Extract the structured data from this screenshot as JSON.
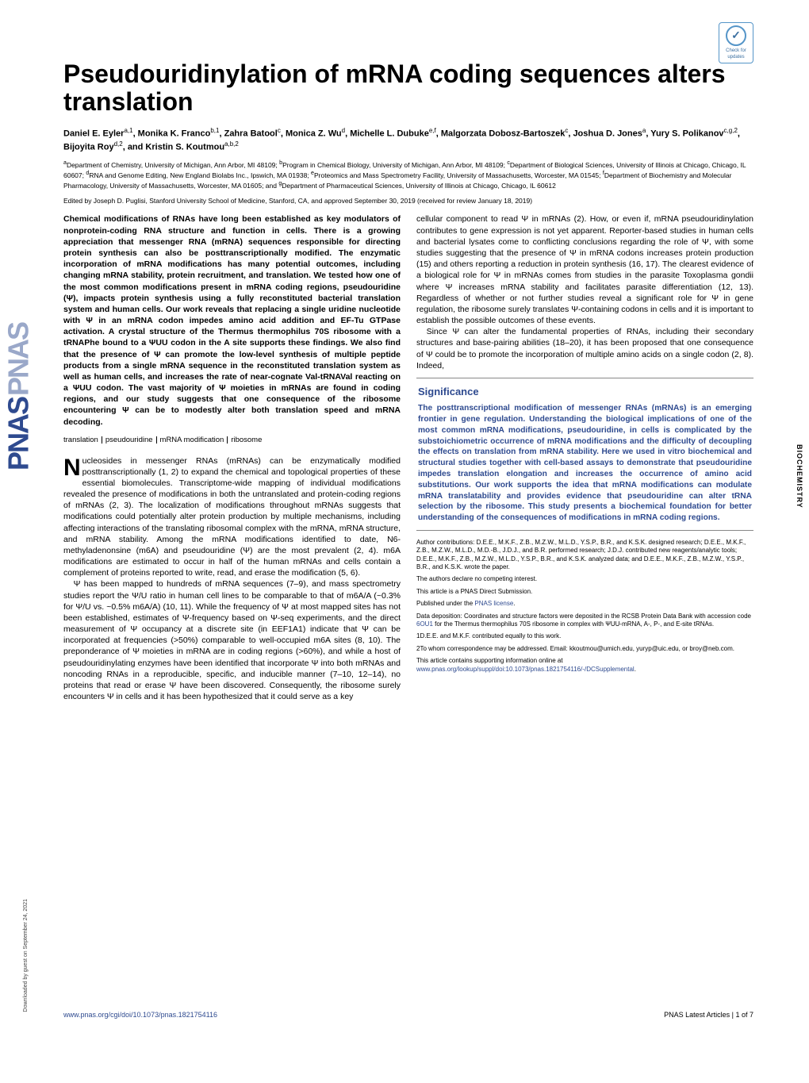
{
  "badge": {
    "check": "✓",
    "label": "Check for updates"
  },
  "vertical_category": "BIOCHEMISTRY",
  "download_note": "Downloaded by guest on September 24, 2021",
  "title": "Pseudouridinylation of mRNA coding sequences alters translation",
  "authors_html": "Daniel E. Eyler<sup>a,1</sup>, Monika K. Franco<sup>b,1</sup>, Zahra Batool<sup>c</sup>, Monica Z. Wu<sup>d</sup>, Michelle L. Dubuke<sup>e,f</sup>, Malgorzata Dobosz-Bartoszek<sup>c</sup>, Joshua D. Jones<sup>a</sup>, Yury S. Polikanov<sup>c,g,2</sup>, Bijoyita Roy<sup>d,2</sup>, and Kristin S. Koutmou<sup>a,b,2</sup>",
  "affiliations": "<sup>a</sup>Department of Chemistry, University of Michigan, Ann Arbor, MI 48109; <sup>b</sup>Program in Chemical Biology, University of Michigan, Ann Arbor, MI 48109; <sup>c</sup>Department of Biological Sciences, University of Illinois at Chicago, Chicago, IL 60607; <sup>d</sup>RNA and Genome Editing, New England Biolabs Inc., Ipswich, MA 01938; <sup>e</sup>Proteomics and Mass Spectrometry Facility, University of Massachusetts, Worcester, MA 01545; <sup>f</sup>Department of Biochemistry and Molecular Pharmacology, University of Massachusetts, Worcester, MA 01605; and <sup>g</sup>Department of Pharmaceutical Sciences, University of Illinois at Chicago, Chicago, IL 60612",
  "edited": "Edited by Joseph D. Puglisi, Stanford University School of Medicine, Stanford, CA, and approved September 30, 2019 (received for review January 18, 2019)",
  "abstract": "Chemical modifications of RNAs have long been established as key modulators of nonprotein-coding RNA structure and function in cells. There is a growing appreciation that messenger RNA (mRNA) sequences responsible for directing protein synthesis can also be posttranscriptionally modified. The enzymatic incorporation of mRNA modifications has many potential outcomes, including changing mRNA stability, protein recruitment, and translation. We tested how one of the most common modifications present in mRNA coding regions, pseudouridine (Ψ), impacts protein synthesis using a fully reconstituted bacterial translation system and human cells. Our work reveals that replacing a single uridine nucleotide with Ψ in an mRNA codon impedes amino acid addition and EF-Tu GTPase activation. A crystal structure of the Thermus thermophilus 70S ribosome with a tRNAPhe bound to a ΨUU codon in the A site supports these findings. We also find that the presence of Ψ can promote the low-level synthesis of multiple peptide products from a single mRNA sequence in the reconstituted translation system as well as human cells, and increases the rate of near-cognate Val-tRNAVal reacting on a ΨUU codon. The vast majority of Ψ moieties in mRNAs are found in coding regions, and our study suggests that one consequence of the ribosome encountering Ψ can be to modestly alter both translation speed and mRNA decoding.",
  "keywords": [
    "translation",
    "pseudouridine",
    "mRNA modification",
    "ribosome"
  ],
  "body_col1_p1": "ucleosides in messenger RNAs (mRNAs) can be enzymatically modified posttranscriptionally (1, 2) to expand the chemical and topological properties of these essential biomolecules. Transcriptome-wide mapping of individual modifications revealed the presence of modifications in both the untranslated and protein-coding regions of mRNAs (2, 3). The localization of modifications throughout mRNAs suggests that modifications could potentially alter protein production by multiple mechanisms, including affecting interactions of the translating ribosomal complex with the mRNA, mRNA structure, and mRNA stability. Among the mRNA modifications identified to date, N6-methyladenonsine (m6A) and pseudouridine (Ψ) are the most prevalent (2, 4). m6A modifications are estimated to occur in half of the human mRNAs and cells contain a complement of proteins reported to write, read, and erase the modification (5, 6).",
  "body_col1_p2": "Ψ has been mapped to hundreds of mRNA sequences (7–9), and mass spectrometry studies report the Ψ/U ratio in human cell lines to be comparable to that of m6A/A (~0.3% for Ψ/U vs. ~0.5% m6A/A) (10, 11). While the frequency of Ψ at most mapped sites has not been established, estimates of Ψ-frequency based on Ψ-seq experiments, and the direct measurement of Ψ occupancy at a discrete site (in EEF1A1) indicate that Ψ can be incorporated at frequencies (>50%) comparable to well-occupied m6A sites (8, 10). The preponderance of Ψ moieties in mRNA are in coding regions (>60%), and while a host of pseudouridinylating enzymes have been identified that incorporate Ψ into both mRNAs and noncoding RNAs in a reproducible, specific, and inducible manner (7–10, 12–14), no proteins that read or erase Ψ have been discovered. Consequently, the ribosome surely encounters Ψ in cells and it has been hypothesized that it could serve as a key",
  "body_col2_p1": "cellular component to read Ψ in mRNAs (2). How, or even if, mRNA pseudouridinylation contributes to gene expression is not yet apparent. Reporter-based studies in human cells and bacterial lysates come to conflicting conclusions regarding the role of Ψ, with some studies suggesting that the presence of Ψ in mRNA codons increases protein production (15) and others reporting a reduction in protein synthesis (16, 17). The clearest evidence of a biological role for Ψ in mRNAs comes from studies in the parasite Toxoplasma gondii where Ψ increases mRNA stability and facilitates parasite differentiation (12, 13). Regardless of whether or not further studies reveal a significant role for Ψ in gene regulation, the ribosome surely translates Ψ-containing codons in cells and it is important to establish the possible outcomes of these events.",
  "body_col2_p2": "Since Ψ can alter the fundamental properties of RNAs, including their secondary structures and base-pairing abilities (18–20), it has been proposed that one consequence of Ψ could be to promote the incorporation of multiple amino acids on a single codon (2, 8). Indeed,",
  "significance_title": "Significance",
  "significance": "The posttranscriptional modification of messenger RNAs (mRNAs) is an emerging frontier in gene regulation. Understanding the biological implications of one of the most common mRNA modifications, pseudouridine, in cells is complicated by the substoichiometric occurrence of mRNA modifications and the difficulty of decoupling the effects on translation from mRNA stability. Here we used in vitro biochemical and structural studies together with cell-based assays to demonstrate that pseudouridine impedes translation elongation and increases the occurrence of amino acid substitutions. Our work supports the idea that mRNA modifications can modulate mRNA translatability and provides evidence that pseudouridine can alter tRNA selection by the ribosome. This study presents a biochemical foundation for better understanding of the consequences of modifications in mRNA coding regions.",
  "meta": {
    "contrib": "Author contributions: D.E.E., M.K.F., Z.B., M.Z.W., M.L.D., Y.S.P., B.R., and K.S.K. designed research; D.E.E., M.K.F., Z.B., M.Z.W., M.L.D., M.D.-B., J.D.J., and B.R. performed research; J.D.J. contributed new reagents/analytic tools; D.E.E., M.K.F., Z.B., M.Z.W., M.L.D., Y.S.P., B.R., and K.S.K. analyzed data; and D.E.E., M.K.F., Z.B., M.Z.W., Y.S.P., B.R., and K.S.K. wrote the paper.",
    "conflict": "The authors declare no competing interest.",
    "submission": "This article is a PNAS Direct Submission.",
    "license_pre": "Published under the ",
    "license_link": "PNAS license",
    "license_post": ".",
    "data": "Data deposition: Coordinates and structure factors were deposited in the RCSB Protein Data Bank with accession code ",
    "data_link": "6OU1",
    "data_post": " for the Thermus thermophilus 70S ribosome in complex with ΨUU-mRNA, A-, P-, and E-site tRNAs.",
    "equal": "1D.E.E. and M.K.F. contributed equally to this work.",
    "corr": "2To whom correspondence may be addressed. Email: kkoutmou@umich.edu, yuryp@uic.edu, or broy@neb.com.",
    "supp_pre": "This article contains supporting information online at ",
    "supp_link": "www.pnas.org/lookup/suppl/doi:10.1073/pnas.1821754116/-/DCSupplemental",
    "supp_post": "."
  },
  "footer": {
    "doi": "www.pnas.org/cgi/doi/10.1073/pnas.1821754116",
    "right": "PNAS Latest Articles | 1 of 7"
  }
}
